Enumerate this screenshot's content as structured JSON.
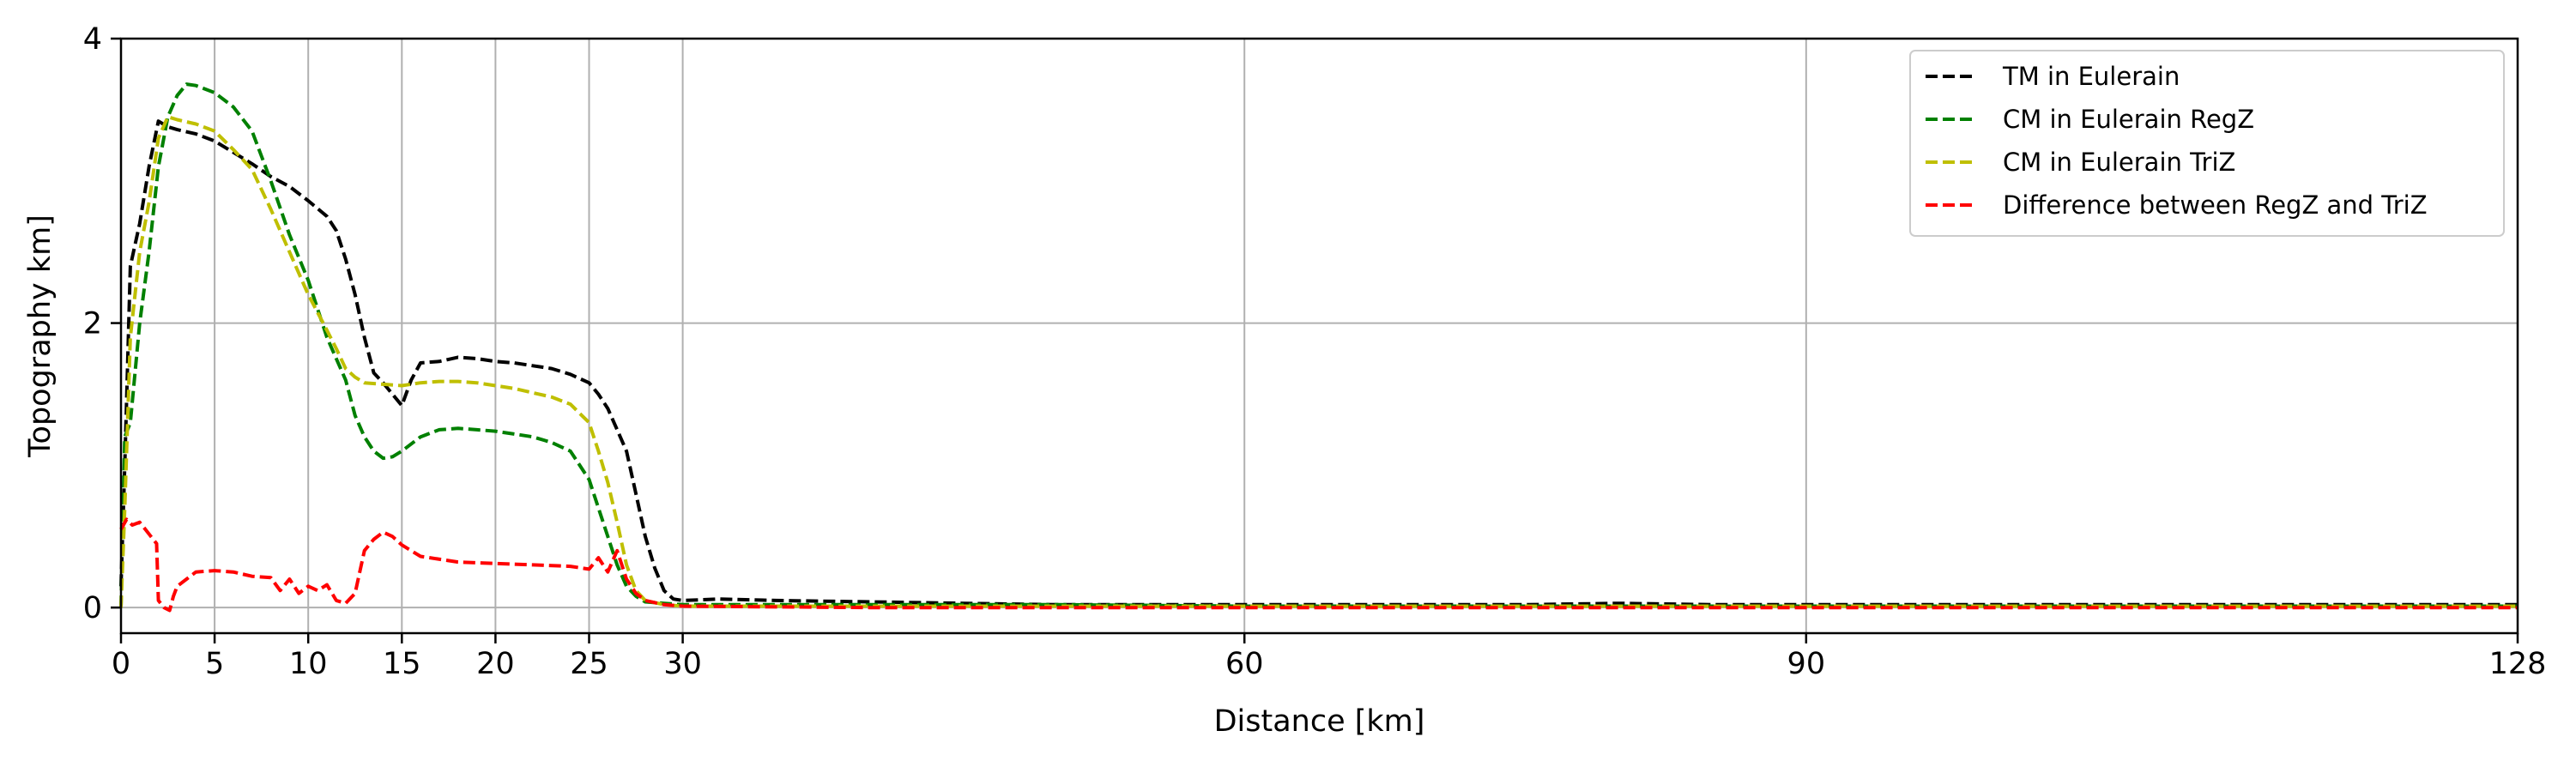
{
  "chart_data": {
    "type": "line",
    "title": "",
    "xlabel": "Distance [km]",
    "ylabel": "Topography km]",
    "xlim": [
      0,
      128
    ],
    "ylim": [
      -0.18,
      4
    ],
    "x_ticks": [
      0,
      5,
      10,
      15,
      20,
      25,
      30,
      60,
      90,
      128
    ],
    "y_ticks": [
      0,
      2,
      4
    ],
    "grid": true,
    "legend_position": "top-right",
    "series": [
      {
        "name": "TM in Eulerain",
        "color": "#000000",
        "line_style": "dashed",
        "x": [
          0,
          0.2,
          0.5,
          1,
          1.5,
          2,
          2.5,
          3,
          4,
          5,
          6,
          7,
          8,
          9,
          10,
          11,
          11.5,
          12,
          12.5,
          13,
          13.5,
          14,
          14.5,
          15,
          15.5,
          16,
          17,
          18,
          19,
          20,
          21,
          22,
          23,
          24,
          25,
          25.5,
          26,
          26.5,
          27,
          27.5,
          28,
          28.5,
          29,
          29.5,
          30,
          32,
          35,
          40,
          45,
          50,
          55,
          60,
          65,
          70,
          75,
          80,
          85,
          90,
          95,
          100,
          105,
          110,
          115,
          120,
          125,
          128
        ],
        "y": [
          0.15,
          1.0,
          2.4,
          2.7,
          3.1,
          3.42,
          3.38,
          3.36,
          3.33,
          3.28,
          3.2,
          3.12,
          3.03,
          2.96,
          2.86,
          2.75,
          2.65,
          2.45,
          2.2,
          1.9,
          1.65,
          1.58,
          1.5,
          1.42,
          1.6,
          1.72,
          1.73,
          1.76,
          1.75,
          1.73,
          1.72,
          1.7,
          1.68,
          1.64,
          1.58,
          1.5,
          1.4,
          1.25,
          1.1,
          0.8,
          0.5,
          0.28,
          0.12,
          0.06,
          0.05,
          0.06,
          0.05,
          0.04,
          0.03,
          0.02,
          0.02,
          0.02,
          0.02,
          0.02,
          0.02,
          0.03,
          0.02,
          0.02,
          0.02,
          0.02,
          0.02,
          0.02,
          0.02,
          0.02,
          0.02,
          0.02
        ]
      },
      {
        "name": "CM in Eulerain RegZ",
        "color": "#008000",
        "line_style": "dashed",
        "x": [
          0,
          0.2,
          0.5,
          1,
          1.5,
          2,
          2.5,
          3,
          3.5,
          4,
          5,
          6,
          7,
          8,
          9,
          10,
          11,
          12,
          12.5,
          13,
          13.5,
          14,
          14.5,
          15,
          16,
          17,
          18,
          19,
          20,
          21,
          22,
          23,
          24,
          25,
          25.5,
          26,
          26.5,
          27,
          27.5,
          28,
          29,
          30,
          35,
          40,
          50,
          60,
          70,
          80,
          90,
          100,
          110,
          120,
          128
        ],
        "y": [
          0.0,
          1.2,
          1.3,
          2.0,
          2.5,
          3.1,
          3.45,
          3.6,
          3.68,
          3.67,
          3.62,
          3.52,
          3.35,
          3.0,
          2.62,
          2.3,
          1.9,
          1.6,
          1.35,
          1.2,
          1.1,
          1.05,
          1.06,
          1.1,
          1.2,
          1.25,
          1.26,
          1.25,
          1.24,
          1.22,
          1.2,
          1.16,
          1.1,
          0.9,
          0.7,
          0.5,
          0.3,
          0.15,
          0.08,
          0.04,
          0.03,
          0.02,
          0.02,
          0.02,
          0.02,
          0.01,
          0.01,
          0.01,
          0.01,
          0.01,
          0.01,
          0.01,
          0.01
        ]
      },
      {
        "name": "CM in Eulerain TriZ",
        "color": "#bfbf00",
        "line_style": "dashed",
        "x": [
          0,
          0.2,
          0.5,
          1,
          1.5,
          2,
          2.5,
          3,
          4,
          5,
          6,
          7,
          8,
          9,
          10,
          11,
          11.5,
          12,
          12.5,
          13,
          14,
          15,
          16,
          17,
          18,
          19,
          20,
          21,
          22,
          23,
          24,
          25,
          25.5,
          26,
          26.5,
          27,
          27.5,
          28,
          29,
          30,
          35,
          40,
          50,
          60,
          70,
          80,
          90,
          100,
          110,
          120,
          128
        ],
        "y": [
          0.0,
          0.7,
          1.9,
          2.5,
          2.85,
          3.3,
          3.45,
          3.43,
          3.4,
          3.35,
          3.22,
          3.08,
          2.8,
          2.5,
          2.2,
          1.95,
          1.82,
          1.68,
          1.62,
          1.58,
          1.57,
          1.56,
          1.58,
          1.59,
          1.59,
          1.58,
          1.56,
          1.54,
          1.51,
          1.48,
          1.43,
          1.3,
          1.1,
          0.88,
          0.6,
          0.3,
          0.12,
          0.05,
          0.02,
          0.01,
          0.01,
          0.01,
          0.01,
          0.01,
          0.01,
          0.01,
          0.01,
          0.01,
          0.01,
          0.01,
          0.01
        ]
      },
      {
        "name": "Difference between RegZ and TriZ",
        "color": "#ff0000",
        "line_style": "dashed",
        "x": [
          0,
          0.3,
          0.6,
          1.0,
          1.3,
          1.6,
          1.9,
          2.0,
          2.3,
          2.6,
          2.8,
          3.0,
          3.5,
          4,
          5,
          6,
          7,
          8,
          8.5,
          9,
          9.5,
          10,
          10.5,
          11,
          11.5,
          12,
          12.5,
          13,
          13.5,
          14,
          14.5,
          15,
          16,
          18,
          20,
          22,
          24,
          25,
          25.5,
          26,
          26.5,
          27,
          27.5,
          28,
          29,
          30,
          40,
          50,
          60,
          70,
          80,
          90,
          100,
          110,
          120,
          128
        ],
        "y": [
          0.55,
          0.62,
          0.58,
          0.6,
          0.55,
          0.5,
          0.45,
          0.05,
          0.0,
          -0.02,
          0.08,
          0.15,
          0.2,
          0.25,
          0.26,
          0.25,
          0.22,
          0.21,
          0.12,
          0.2,
          0.1,
          0.15,
          0.12,
          0.16,
          0.05,
          0.03,
          0.1,
          0.4,
          0.48,
          0.53,
          0.5,
          0.44,
          0.36,
          0.32,
          0.31,
          0.3,
          0.29,
          0.27,
          0.35,
          0.25,
          0.4,
          0.2,
          0.1,
          0.05,
          0.02,
          0.01,
          0.0,
          0.0,
          0.0,
          0.0,
          0.0,
          0.0,
          0.0,
          0.0,
          0.0,
          0.0
        ]
      }
    ]
  }
}
